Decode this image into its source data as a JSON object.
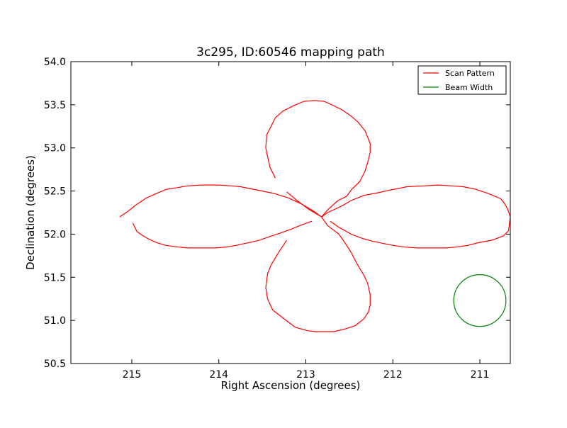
{
  "chart_data": {
    "type": "line",
    "title": "3c295, ID:60546 mapping path",
    "xlabel": "Right Ascension (degrees)",
    "ylabel": "Declination (degrees)",
    "xlim": [
      215.7,
      210.65
    ],
    "ylim": [
      50.5,
      54.0
    ],
    "x_inverted": true,
    "x_ticks": [
      215,
      214,
      213,
      212,
      211
    ],
    "x_tick_labels": [
      "215",
      "214",
      "213",
      "212",
      "211"
    ],
    "y_ticks": [
      50.5,
      51.0,
      51.5,
      52.0,
      52.5,
      53.0,
      53.5,
      54.0
    ],
    "y_tick_labels": [
      "50.5",
      "51.0",
      "51.5",
      "52.0",
      "52.5",
      "53.0",
      "53.5",
      "54.0"
    ],
    "grid": false,
    "legend_position": "top-right",
    "series": [
      {
        "name": "Scan Pattern",
        "color": "#ff0000",
        "x": [
          215.14,
          215.05,
          214.95,
          214.83,
          214.72,
          214.6,
          214.47,
          214.36,
          214.2,
          214.0,
          213.85,
          213.75,
          213.55,
          213.36,
          213.2,
          213.05,
          212.9,
          212.82,
          212.72,
          212.62,
          212.48,
          212.35,
          212.24,
          212.1,
          212.0,
          211.86,
          211.72,
          211.55,
          211.39,
          211.28,
          211.14,
          211.02,
          210.86,
          210.73,
          210.67,
          210.65,
          210.68,
          210.72,
          210.76,
          210.9,
          211.05,
          211.19,
          211.32,
          211.48,
          211.64,
          211.84,
          211.93,
          212.04,
          212.17,
          212.33,
          212.48,
          212.58,
          212.75,
          212.82,
          212.93,
          213.07,
          213.16,
          213.3,
          213.42,
          213.53,
          213.62,
          213.71,
          213.8,
          213.92,
          214.04,
          214.22,
          214.35,
          214.46,
          214.61,
          214.71,
          214.8,
          214.87,
          214.94,
          214.99,
          212.82,
          212.74,
          212.63,
          212.53,
          212.48,
          212.38,
          212.32,
          212.29,
          212.26,
          212.26,
          212.32,
          212.4,
          212.48,
          212.58,
          212.7,
          212.79,
          212.9,
          213.02,
          213.12,
          213.26,
          213.35,
          213.4,
          213.45,
          213.46,
          213.44,
          213.41,
          213.35,
          213.22,
          213.1,
          212.97,
          212.82,
          212.75,
          212.62,
          212.55,
          212.48,
          212.43,
          212.38,
          212.33,
          212.29,
          212.26,
          212.26,
          212.28,
          212.33,
          212.43,
          212.55,
          212.68,
          212.79,
          212.89,
          212.98,
          213.12,
          213.2,
          213.29,
          213.38,
          213.44,
          213.46,
          213.44,
          213.4,
          213.33,
          213.22,
          213.1,
          212.95,
          212.82
        ],
        "y": [
          52.2,
          52.26,
          52.34,
          52.42,
          52.47,
          52.52,
          52.54,
          52.56,
          52.57,
          52.57,
          52.56,
          52.55,
          52.51,
          52.47,
          52.42,
          52.35,
          52.26,
          52.2,
          52.15,
          52.08,
          52.0,
          51.95,
          51.92,
          51.89,
          51.87,
          51.85,
          51.84,
          51.84,
          51.84,
          51.85,
          51.87,
          51.9,
          51.93,
          51.98,
          52.04,
          52.2,
          52.29,
          52.36,
          52.41,
          52.47,
          52.52,
          52.55,
          52.56,
          52.57,
          52.56,
          52.55,
          52.53,
          52.51,
          52.48,
          52.45,
          52.39,
          52.33,
          52.25,
          52.2,
          52.15,
          52.1,
          52.06,
          52.01,
          51.97,
          51.93,
          51.91,
          51.89,
          51.87,
          51.85,
          51.84,
          51.84,
          51.84,
          51.85,
          51.87,
          51.9,
          51.94,
          51.98,
          52.03,
          52.13,
          52.2,
          52.29,
          52.39,
          52.44,
          52.51,
          52.61,
          52.73,
          52.83,
          52.95,
          53.05,
          53.2,
          53.3,
          53.37,
          53.44,
          53.5,
          53.54,
          53.55,
          53.54,
          53.5,
          53.43,
          53.35,
          53.25,
          53.15,
          53.0,
          52.9,
          52.77,
          52.65,
          52.49,
          52.39,
          52.29,
          52.2,
          52.1,
          52.0,
          51.9,
          51.79,
          51.69,
          51.6,
          51.52,
          51.43,
          51.3,
          51.18,
          51.1,
          51.02,
          50.94,
          50.9,
          50.87,
          50.87,
          50.87,
          50.88,
          50.92,
          50.98,
          51.05,
          51.12,
          51.25,
          51.38,
          51.54,
          51.64,
          51.76,
          51.93,
          52.03,
          52.13,
          52.2
        ],
        "segments": [
          18,
          36,
          20,
          27,
          32
        ]
      },
      {
        "name": "Beam Width",
        "color": "#008000",
        "center": [
          211.0,
          51.23
        ],
        "radius_deg": 0.3
      }
    ]
  }
}
